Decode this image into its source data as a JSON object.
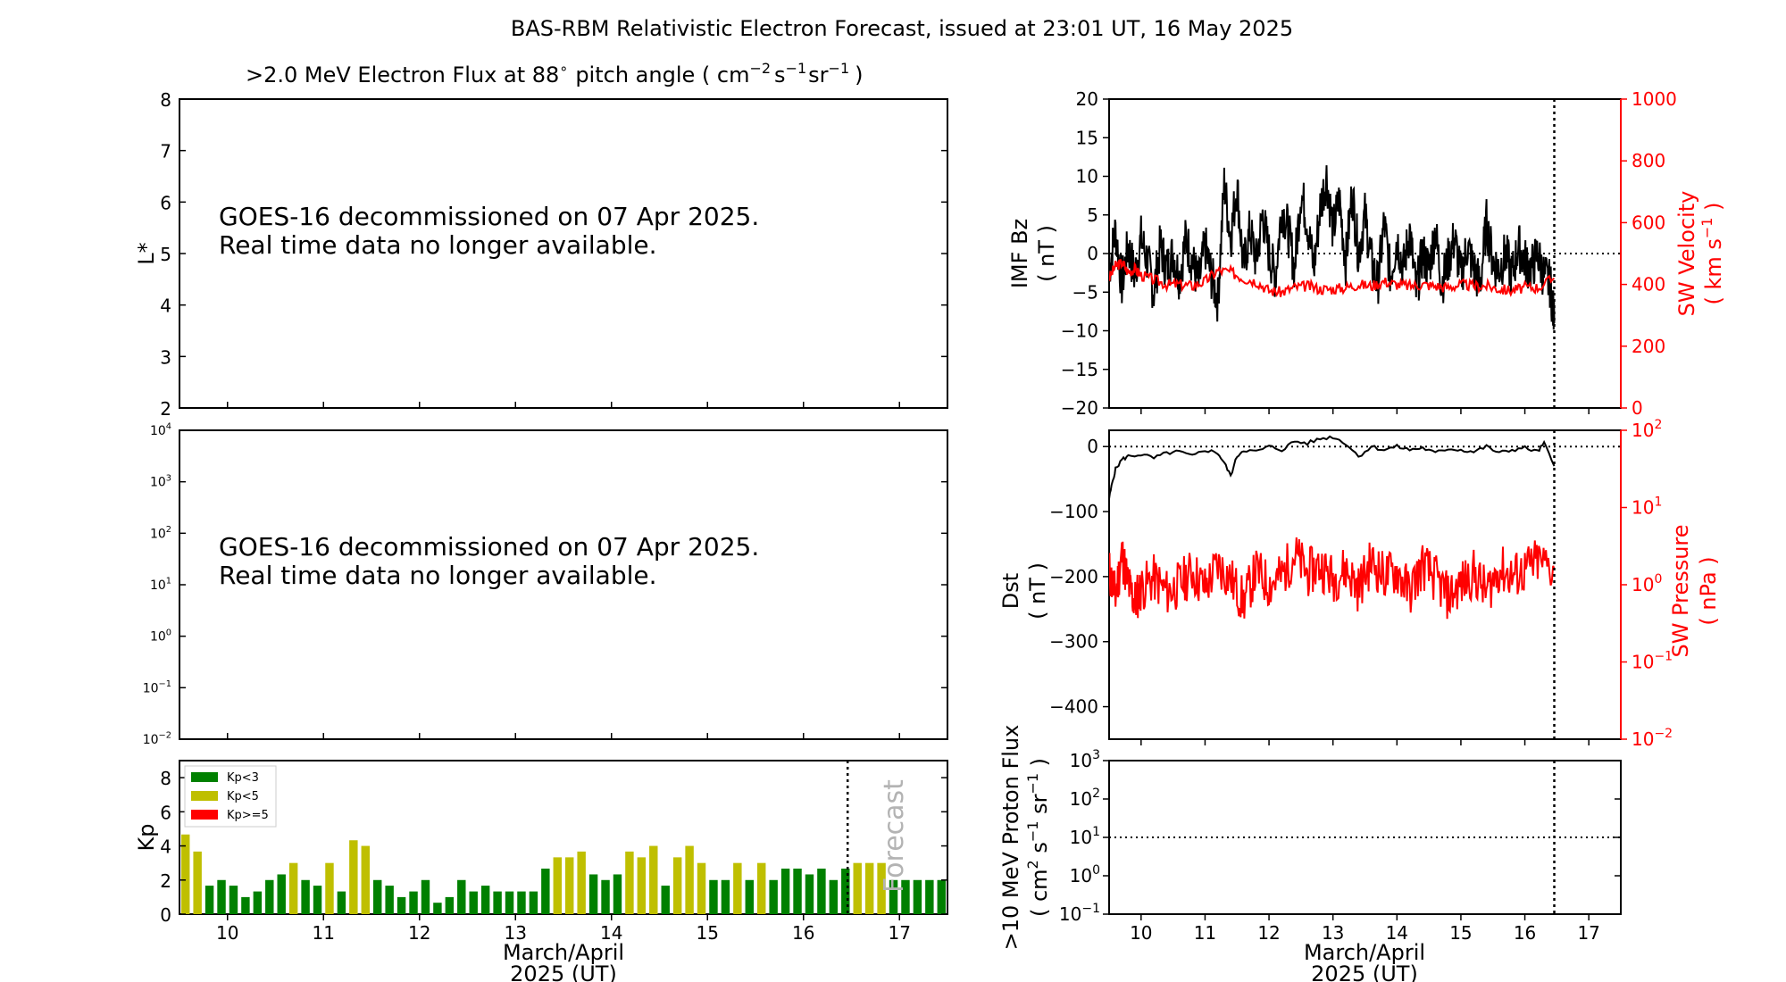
{
  "header": {
    "title": "BAS-RBM Relativistic Electron Forecast, issued at 23:01 UT, 16 May 2025",
    "flux_title_prefix": ">2.0 MeV Electron Flux at 88",
    "flux_title_suffix": "pitch angle ( cm",
    "flux_title_units_1": "s",
    "flux_title_units_2": "sr",
    "flux_title_close": ")"
  },
  "notice": {
    "line1": "GOES-16 decommissioned on 07 Apr 2025.",
    "line2": "Real time data no longer available."
  },
  "xaxis": {
    "label1": "March/April",
    "label2": "2025 (UT)",
    "ticks": [
      "10",
      "11",
      "12",
      "13",
      "14",
      "15",
      "16",
      "17"
    ]
  },
  "colors": {
    "kp_low": "#008000",
    "kp_mid": "#bfbf00",
    "kp_high": "#ff0000",
    "sw_red": "#ff0000",
    "axis_black": "#000000"
  },
  "chart_data": [
    {
      "type": "line",
      "id": "lstar",
      "ylabel": "L*",
      "ylim": [
        2,
        8
      ],
      "yticks": [
        "2",
        "3",
        "4",
        "5",
        "6",
        "7",
        "8"
      ],
      "series": []
    },
    {
      "type": "line",
      "id": "electron-flux",
      "ylabel": "",
      "yscale": "log",
      "ylim": [
        0.01,
        10000
      ],
      "yticks_exp": [
        "-2",
        "-1",
        "0",
        "1",
        "2",
        "3",
        "4"
      ],
      "series": []
    },
    {
      "type": "bar",
      "id": "kp",
      "ylabel": "Kp",
      "ylim": [
        0,
        9
      ],
      "yticks": [
        "0",
        "2",
        "4",
        "6",
        "8"
      ],
      "forecast_label": "Forecast",
      "legend": [
        "Kp<3",
        "Kp<5",
        "Kp>=5"
      ],
      "legend_position": "top-left",
      "x_start": 9.5,
      "bar_width_days": 0.125,
      "forecast_start": 16.5,
      "values": [
        4.67,
        3.67,
        1.67,
        2.0,
        1.67,
        1.0,
        1.33,
        2.0,
        2.33,
        3.0,
        2.0,
        1.67,
        3.0,
        1.33,
        4.33,
        4.0,
        2.0,
        1.67,
        1.0,
        1.33,
        2.0,
        0.67,
        1.0,
        2.0,
        1.33,
        1.67,
        1.33,
        1.33,
        1.33,
        1.33,
        2.67,
        3.33,
        3.33,
        3.67,
        2.33,
        2.0,
        2.33,
        3.67,
        3.33,
        4.0,
        1.67,
        3.33,
        4.0,
        3.0,
        2.0,
        2.0,
        3.0,
        2.0,
        3.0,
        2.0,
        2.67,
        2.67,
        2.33,
        2.67,
        2.0,
        2.67,
        3.0,
        3.0,
        3.0,
        2.0,
        2.0,
        2.0,
        2.0,
        2.0
      ]
    },
    {
      "type": "line",
      "id": "imf-solarwind",
      "ylabel": "IMF Bz",
      "ylabel_units": "( nT )",
      "ylim": [
        -20,
        20
      ],
      "yticks": [
        "−20",
        "−15",
        "−10",
        "−5",
        "0",
        "5",
        "10",
        "15",
        "20"
      ],
      "y2label": "SW Velocity",
      "y2label_units_prefix": "( km s",
      "y2label_units_suffix": " )",
      "y2lim": [
        0,
        1000
      ],
      "y2ticks": [
        "0",
        "200",
        "400",
        "600",
        "800",
        "1000"
      ],
      "issue_time": 16.46,
      "series": [
        {
          "color": "#000000",
          "x": [
            9.5,
            9.6,
            9.7,
            9.8,
            9.9,
            10.0,
            10.1,
            10.2,
            10.3,
            10.4,
            10.5,
            10.6,
            10.7,
            10.8,
            10.9,
            11.0,
            11.1,
            11.2,
            11.3,
            11.4,
            11.5,
            11.6,
            11.7,
            11.8,
            11.9,
            12.0,
            12.1,
            12.2,
            12.3,
            12.4,
            12.5,
            12.6,
            12.7,
            12.8,
            12.9,
            13.0,
            13.1,
            13.2,
            13.3,
            13.4,
            13.5,
            13.6,
            13.7,
            13.8,
            13.9,
            14.0,
            14.1,
            14.2,
            14.3,
            14.4,
            14.5,
            14.6,
            14.7,
            14.8,
            14.9,
            15.0,
            15.1,
            15.2,
            15.3,
            15.4,
            15.5,
            15.6,
            15.7,
            15.8,
            15.9,
            16.0,
            16.1,
            16.2,
            16.3,
            16.4,
            16.46
          ],
          "values": [
            -2,
            3,
            -4,
            1,
            -3,
            2,
            -1,
            -5,
            1,
            -2,
            0,
            -3,
            2,
            -1,
            -4,
            1,
            -3,
            -6,
            9,
            2,
            9,
            -2,
            3,
            -1,
            5,
            0,
            -3,
            6,
            3,
            -2,
            8,
            4,
            -2,
            6,
            10,
            3,
            7,
            -1,
            8,
            0,
            5,
            -1,
            -4,
            4,
            -3,
            2,
            -2,
            3,
            -5,
            0,
            -2,
            3,
            -4,
            -1,
            2,
            -3,
            1,
            -2,
            -4,
            4,
            -1,
            -2,
            0,
            -3,
            1,
            -1,
            -2,
            0,
            -3,
            -4,
            -9
          ]
        },
        {
          "color": "#ff0000",
          "axis": "y2",
          "x": [
            9.5,
            9.6,
            9.7,
            9.8,
            9.9,
            10.0,
            10.2,
            10.4,
            10.6,
            10.8,
            11.0,
            11.2,
            11.4,
            11.6,
            11.8,
            12.0,
            12.2,
            12.4,
            12.6,
            12.8,
            13.0,
            13.2,
            13.4,
            13.6,
            13.8,
            14.0,
            14.2,
            14.4,
            14.6,
            14.8,
            15.0,
            15.2,
            15.4,
            15.6,
            15.8,
            16.0,
            16.2,
            16.46
          ],
          "values": [
            420,
            460,
            470,
            440,
            450,
            430,
            415,
            400,
            400,
            395,
            410,
            445,
            440,
            420,
            410,
            380,
            375,
            390,
            395,
            385,
            385,
            390,
            400,
            395,
            410,
            400,
            395,
            400,
            395,
            390,
            400,
            395,
            395,
            385,
            380,
            390,
            390,
            420
          ]
        }
      ]
    },
    {
      "type": "line",
      "id": "dst-pressure",
      "ylabel": "Dst",
      "ylabel_units": "( nT )",
      "ylim": [
        -450,
        25
      ],
      "yticks": [
        "0",
        "−100",
        "−200",
        "−300",
        "−400"
      ],
      "y2label": "SW Pressure",
      "y2label_units": "( nPa )",
      "y2scale": "log",
      "y2lim": [
        0.01,
        100
      ],
      "y2ticks_exp": [
        "-2",
        "-1",
        "0",
        "1",
        "2"
      ],
      "issue_time": 16.46,
      "series": [
        {
          "color": "#000000",
          "x": [
            9.5,
            9.55,
            9.6,
            9.7,
            9.8,
            10.0,
            10.2,
            10.4,
            10.6,
            10.8,
            11.0,
            11.2,
            11.3,
            11.4,
            11.5,
            11.6,
            11.8,
            12.0,
            12.2,
            12.4,
            12.6,
            12.8,
            13.0,
            13.2,
            13.4,
            13.6,
            13.8,
            14.0,
            14.2,
            14.4,
            14.6,
            14.8,
            15.0,
            15.2,
            15.4,
            15.6,
            15.8,
            16.0,
            16.2,
            16.3,
            16.46
          ],
          "values": [
            -80,
            -55,
            -35,
            -20,
            -15,
            -12,
            -18,
            -10,
            -8,
            -15,
            -5,
            -10,
            -25,
            -45,
            -15,
            -5,
            -8,
            0,
            -5,
            8,
            5,
            12,
            15,
            5,
            -15,
            0,
            -5,
            0,
            -5,
            -2,
            -10,
            -3,
            -5,
            -8,
            0,
            -10,
            -5,
            -2,
            -8,
            5,
            -30
          ]
        },
        {
          "color": "#ff0000",
          "axis": "y2",
          "x": [
            9.5,
            9.6,
            9.7,
            9.8,
            9.9,
            10.0,
            10.2,
            10.4,
            10.6,
            10.8,
            11.0,
            11.2,
            11.4,
            11.6,
            11.8,
            12.0,
            12.2,
            12.4,
            12.6,
            12.8,
            13.0,
            13.2,
            13.4,
            13.6,
            13.8,
            14.0,
            14.2,
            14.4,
            14.6,
            14.8,
            15.0,
            15.2,
            15.4,
            15.6,
            15.8,
            16.0,
            16.2,
            16.46
          ],
          "values": [
            1.5,
            0.7,
            2.5,
            1.0,
            0.6,
            0.9,
            1.2,
            0.8,
            1.0,
            1.5,
            0.9,
            1.8,
            1.2,
            0.6,
            1.5,
            1.0,
            1.3,
            2.5,
            1.4,
            1.8,
            1.2,
            1.6,
            0.9,
            2.0,
            1.3,
            1.5,
            0.8,
            1.8,
            1.2,
            0.7,
            1.0,
            1.4,
            0.8,
            1.6,
            1.3,
            1.5,
            2.0,
            1.6
          ]
        }
      ]
    },
    {
      "type": "line",
      "id": "proton-flux",
      "ylabel": ">10 MeV Proton Flux",
      "ylabel_units_prefix": "( cm",
      "ylabel_units_suffix": " )",
      "yscale": "log",
      "ylim": [
        0.1,
        1000
      ],
      "yticks_exp": [
        "-1",
        "0",
        "1",
        "2",
        "3"
      ],
      "threshold": 10,
      "issue_time": 16.46,
      "series": []
    }
  ]
}
